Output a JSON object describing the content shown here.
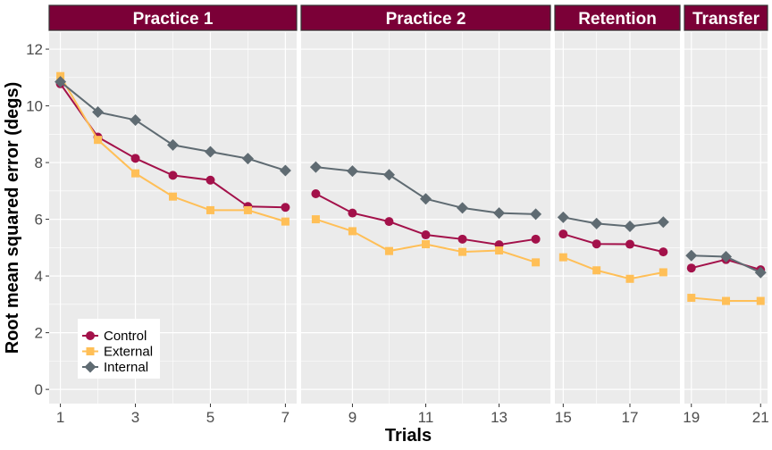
{
  "chart_data": {
    "type": "line",
    "xlabel": "Trials",
    "ylabel": "Root mean squared error (degs)",
    "ylim": [
      -0.5,
      12.6
    ],
    "yticks": [
      0,
      2,
      4,
      6,
      8,
      10,
      12
    ],
    "grid": true,
    "legend_position": "bottom-left",
    "strip_color": "#7b0037",
    "panels": [
      {
        "label": "Practice 1",
        "xlim": [
          0.7,
          7.3
        ],
        "xticks": [
          1,
          3,
          5,
          7
        ]
      },
      {
        "label": "Practice 2",
        "xlim": [
          7.6,
          14.4
        ],
        "xticks": [
          9,
          11,
          13
        ]
      },
      {
        "label": "Retention",
        "xlim": [
          14.75,
          18.5
        ],
        "xticks": [
          15,
          17
        ]
      },
      {
        "label": "Transfer",
        "xlim": [
          18.8,
          21.2
        ],
        "xticks": [
          19,
          21
        ]
      }
    ],
    "series": [
      {
        "name": "Control",
        "color": "#a3114a",
        "marker": "circle",
        "segments": [
          {
            "x": [
              1,
              2,
              3,
              4,
              5,
              6,
              7
            ],
            "y": [
              10.78,
              8.9,
              8.15,
              7.55,
              7.38,
              6.45,
              6.42
            ]
          },
          {
            "x": [
              8,
              9,
              10,
              11,
              12,
              13,
              14
            ],
            "y": [
              6.9,
              6.22,
              5.92,
              5.45,
              5.3,
              5.1,
              5.3
            ]
          },
          {
            "x": [
              15,
              16,
              17,
              18
            ],
            "y": [
              5.48,
              5.13,
              5.12,
              4.85
            ]
          },
          {
            "x": [
              19,
              20,
              21
            ],
            "y": [
              4.28,
              4.58,
              4.22
            ]
          }
        ]
      },
      {
        "name": "External",
        "color": "#ffbf57",
        "marker": "square",
        "segments": [
          {
            "x": [
              1,
              2,
              3,
              4,
              5,
              6,
              7
            ],
            "y": [
              11.05,
              8.8,
              7.62,
              6.8,
              6.32,
              6.32,
              5.92
            ]
          },
          {
            "x": [
              8,
              9,
              10,
              11,
              12,
              13,
              14
            ],
            "y": [
              6.0,
              5.58,
              4.88,
              5.12,
              4.85,
              4.9,
              4.48
            ]
          },
          {
            "x": [
              15,
              16,
              17,
              18
            ],
            "y": [
              4.66,
              4.2,
              3.9,
              4.13
            ]
          },
          {
            "x": [
              19,
              20,
              21
            ],
            "y": [
              3.23,
              3.12,
              3.12
            ]
          }
        ]
      },
      {
        "name": "Internal",
        "color": "#5f6b72",
        "marker": "diamond",
        "segments": [
          {
            "x": [
              1,
              2,
              3,
              4,
              5,
              6,
              7
            ],
            "y": [
              10.85,
              9.78,
              9.5,
              8.62,
              8.38,
              8.14,
              7.72
            ]
          },
          {
            "x": [
              8,
              9,
              10,
              11,
              12,
              13,
              14
            ],
            "y": [
              7.84,
              7.7,
              7.57,
              6.72,
              6.4,
              6.22,
              6.18
            ]
          },
          {
            "x": [
              15,
              16,
              17,
              18
            ],
            "y": [
              6.07,
              5.85,
              5.75,
              5.9
            ]
          },
          {
            "x": [
              19,
              20,
              21
            ],
            "y": [
              4.72,
              4.68,
              4.12
            ]
          }
        ]
      }
    ]
  }
}
